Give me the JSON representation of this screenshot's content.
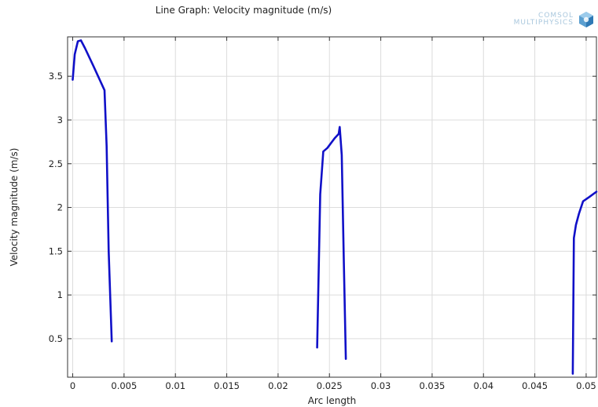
{
  "logo": {
    "line1": "COMSOL",
    "line2": "MULTIPHYSICS"
  },
  "chart_data": {
    "type": "line",
    "title": "Line Graph: Velocity magnitude (m/s)",
    "xlabel": "Arc length",
    "ylabel": "Velocity magnitude (m/s)",
    "xlim": [
      -0.0005,
      0.051
    ],
    "ylim": [
      0.06,
      3.95
    ],
    "xticks": [
      0,
      0.005,
      0.01,
      0.015,
      0.02,
      0.025,
      0.03,
      0.035,
      0.04,
      0.045,
      0.05
    ],
    "xtick_labels": [
      "0",
      "0.005",
      "0.01",
      "0.015",
      "0.02",
      "0.025",
      "0.03",
      "0.035",
      "0.04",
      "0.045",
      "0.05"
    ],
    "yticks": [
      0.5,
      1,
      1.5,
      2,
      2.5,
      3,
      3.5
    ],
    "ytick_labels": [
      "0.5",
      "1",
      "1.5",
      "2",
      "2.5",
      "3",
      "3.5"
    ],
    "grid": true,
    "line_color": "#1010c8",
    "series": [
      {
        "x": [
          0,
          0.0002,
          0.0005,
          0.0008,
          0.0012,
          0.002,
          0.0031,
          0.0033,
          0.0035,
          0.0038
        ],
        "y": [
          3.46,
          3.75,
          3.9,
          3.91,
          3.82,
          3.62,
          3.34,
          2.7,
          1.5,
          0.47
        ]
      },
      {
        "x": [
          0.0238,
          0.0241,
          0.0244,
          0.0248,
          0.0255,
          0.0259,
          0.026,
          0.0262,
          0.0264,
          0.0266
        ],
        "y": [
          0.4,
          2.15,
          2.64,
          2.68,
          2.79,
          2.84,
          2.92,
          2.6,
          1.4,
          0.27
        ]
      },
      {
        "x": [
          0.0487,
          0.0488,
          0.049,
          0.0493,
          0.0497,
          0.0503,
          0.051
        ],
        "y": [
          0.1,
          1.65,
          1.8,
          1.93,
          2.07,
          2.12,
          2.18
        ]
      }
    ]
  }
}
